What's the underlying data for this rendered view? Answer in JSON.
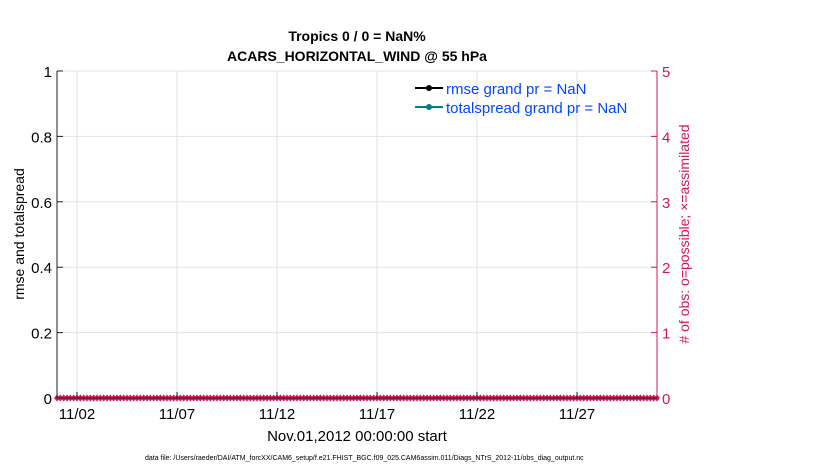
{
  "chart_data": {
    "type": "line",
    "title": [
      "Tropics 0 / 0 = NaN%",
      "ACARS_HORIZONTAL_WIND @ 55 hPa"
    ],
    "xlabel": "Nov.01,2012 00:00:00 start",
    "ylabel": "rmse and totalspread",
    "ylabel_right": "# of obs: o=possible; ×=assimilated",
    "x_tick_labels": [
      "11/02",
      "11/07",
      "11/12",
      "11/17",
      "11/22",
      "11/27"
    ],
    "x_tick_days": [
      1,
      6,
      11,
      16,
      21,
      26
    ],
    "xlim_days": [
      0,
      30
    ],
    "ylim": [
      0,
      1
    ],
    "y_ticks": [
      "0",
      "0.2",
      "0.4",
      "0.6",
      "0.8",
      "1"
    ],
    "ylim_right": [
      0,
      5
    ],
    "y_ticks_right": [
      "0",
      "1",
      "2",
      "3",
      "4",
      "5"
    ],
    "grid": true,
    "legend_placement": "top-right",
    "legend": [
      {
        "name": "rmse grand pr = NaN",
        "color": "#000000"
      },
      {
        "name": "totalspread grand pr = NaN",
        "color": "#008080"
      }
    ],
    "series": [
      {
        "name": "rmse grand pr = NaN",
        "values": []
      },
      {
        "name": "totalspread grand pr = NaN",
        "values": []
      },
      {
        "name": "obs count",
        "axis": "right",
        "interval_hours": 4,
        "constant_value": 0
      }
    ],
    "footer": "data file: /Users/raeder/DAI/ATM_forcXX/CAM6_setup/f.e21.FHIST_BGC.f09_025.CAM6assim.011/Diags_NTrS_2012-11/obs_diag_output.nc",
    "colors": {
      "right_axis": "#d6145a",
      "legend_text": "#0047ff",
      "grid": "#e3e3e3"
    }
  }
}
